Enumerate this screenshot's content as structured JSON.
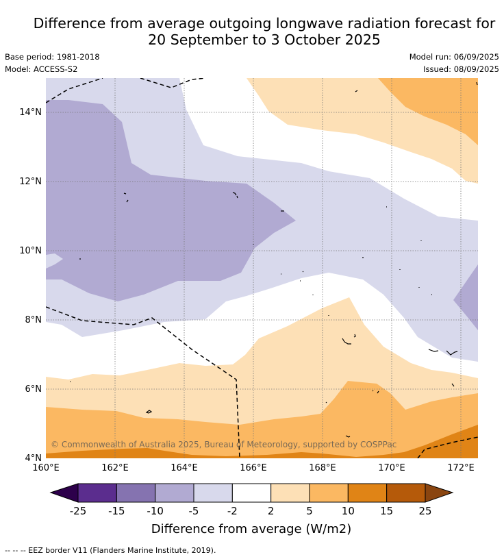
{
  "title": {
    "line1": "Difference from average outgoing longwave radiation forecast for",
    "line2": "20 September to 3 October 2025"
  },
  "meta": {
    "base_period": "Base period: 1981-2018",
    "model": "Model: ACCESS-S2",
    "model_run": "Model run: 06/09/2025",
    "issued": "Issued: 08/09/2025"
  },
  "map": {
    "lon_range": [
      160,
      172.5
    ],
    "lat_range": [
      4,
      15
    ],
    "x_ticks": [
      "160°E",
      "162°E",
      "164°E",
      "166°E",
      "168°E",
      "170°E",
      "172°E"
    ],
    "y_ticks": [
      "4°N",
      "6°N",
      "8°N",
      "10°N",
      "12°N",
      "14°N"
    ],
    "copyright": "© Commonwealth of Australia 2025, Bureau of Meteorology, supported by COSPPac"
  },
  "colorbar": {
    "ticks": [
      "-25",
      "-15",
      "-10",
      "-5",
      "-2",
      "2",
      "5",
      "10",
      "15",
      "25"
    ],
    "colors": [
      "#5b2d8e",
      "#8573b0",
      "#b1aad2",
      "#d8d9ec",
      "#ffffff",
      "#fde0b6",
      "#fbb862",
      "#e08416",
      "#b55a0a"
    ],
    "extend_low_color": "#2d004b",
    "extend_high_color": "#8a4510",
    "title": "Difference from average (W/m2)"
  },
  "footnote": "--  --  -- EEZ border V11 (Flanders Marine Institute, 2019)."
}
